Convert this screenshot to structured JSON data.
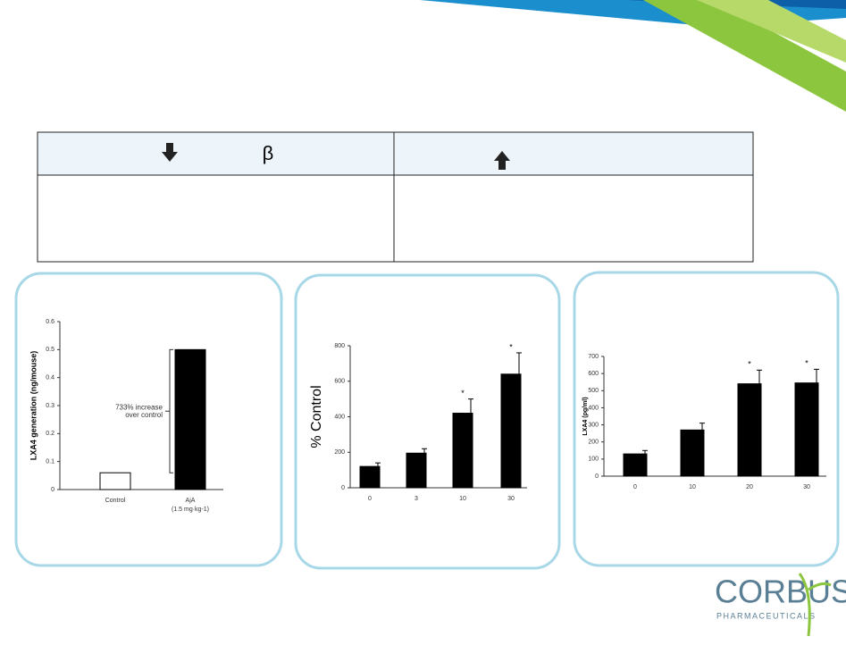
{
  "table": {
    "headers": [
      "β",
      ""
    ]
  },
  "charts": [
    {
      "type": "bar",
      "ylabel": "LXA4 generation (ng/mouse)",
      "categories": [
        "Control",
        "AjA"
      ],
      "category_notes": [
        null,
        "(1.5 mg·kg-1)"
      ],
      "values": [
        0.06,
        0.5
      ],
      "colors": [
        "#ffffff",
        "#000000"
      ],
      "ylim": [
        0,
        0.6
      ],
      "yticks": [
        0,
        0.1,
        0.2,
        0.3,
        0.4,
        0.5,
        0.6
      ],
      "annotation": "733% increase over control"
    },
    {
      "type": "bar",
      "ylabel": "% Control",
      "categories": [
        "0",
        "3",
        "10",
        "30"
      ],
      "values": [
        120,
        195,
        420,
        640
      ],
      "errors": [
        20,
        25,
        80,
        120
      ],
      "significance": [
        null,
        null,
        "*",
        "*"
      ],
      "colors": [
        "#000000",
        "#000000",
        "#000000",
        "#000000"
      ],
      "ylim": [
        0,
        800
      ],
      "yticks": [
        0,
        200,
        400,
        600,
        800
      ]
    },
    {
      "type": "bar",
      "ylabel": "LXA4 (pg/ml)",
      "categories": [
        "0",
        "10",
        "20",
        "30"
      ],
      "values": [
        130,
        270,
        540,
        545
      ],
      "errors": [
        20,
        40,
        80,
        80
      ],
      "significance": [
        null,
        null,
        "*",
        "*"
      ],
      "colors": [
        "#000000",
        "#000000",
        "#000000",
        "#000000"
      ],
      "ylim": [
        0,
        700
      ],
      "yticks": [
        0,
        100,
        200,
        300,
        400,
        500,
        600,
        700
      ]
    }
  ],
  "logo": {
    "name": "CORBUS",
    "tagline": "PHARMACEUTICALS"
  }
}
